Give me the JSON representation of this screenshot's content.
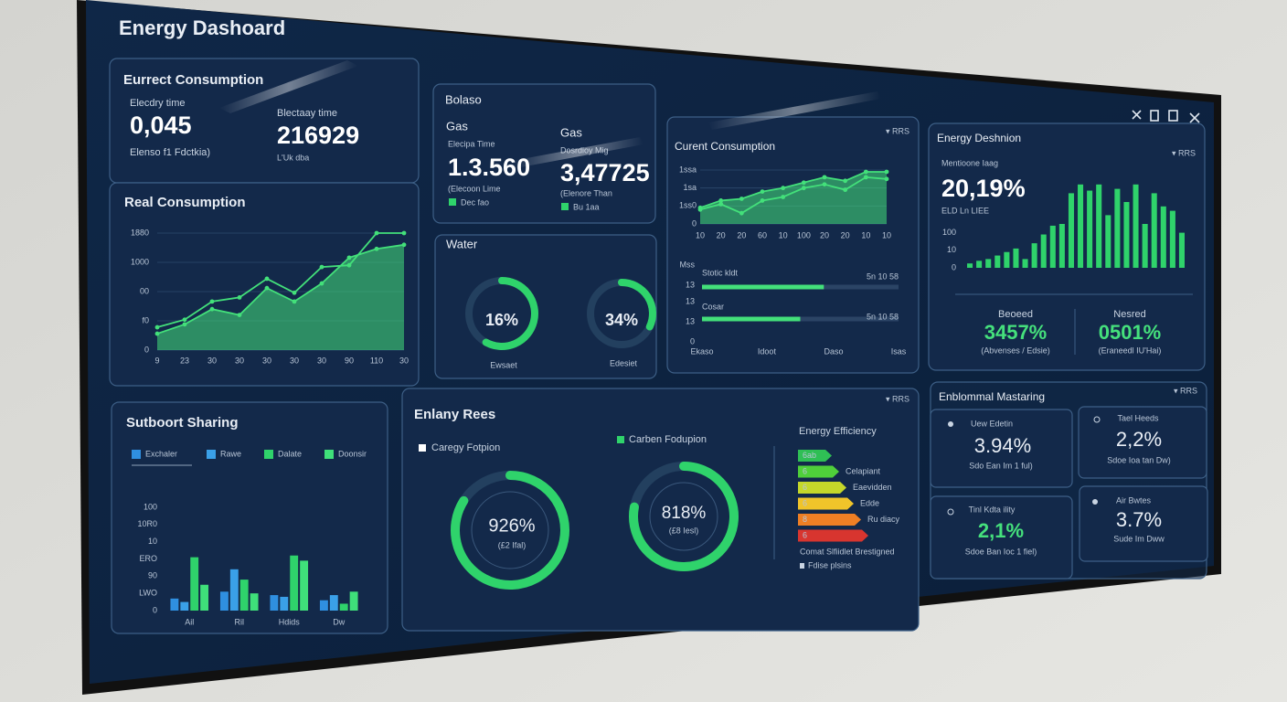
{
  "header": {
    "title": "Energy Dashoard"
  },
  "panels": {
    "current": {
      "title": "Eurrect Consumption",
      "items": [
        {
          "label": "Elecdry time",
          "value": "0,045",
          "sub": "Elenso f1 Fdctkia)"
        },
        {
          "label": "Blectaay time",
          "value": "216929",
          "sub": "L'Uk dba"
        }
      ]
    },
    "gas": {
      "title": "Bolaso",
      "items": [
        {
          "name": "Gas",
          "label": "Elecipa Time",
          "value": "1.3.560",
          "sub": "(Elecoon Lime",
          "legend": "Dec fao"
        },
        {
          "name": "Gas",
          "label": "Dosrdioy Mig",
          "value": "3,47725",
          "sub": "(Elenore Than",
          "legend": "Bu 1aa"
        }
      ]
    },
    "water": {
      "title": "Water",
      "gauges": [
        {
          "value": "16%",
          "label": "Ewsaet"
        },
        {
          "value": "34%",
          "label": "Edesiet"
        }
      ]
    },
    "consumption": {
      "menu": "▾ RRS"
    },
    "distribution": {
      "menu": "▾ RRS",
      "label": "Mentioone Iaag",
      "value": "20,19%",
      "sub": "ELD Ln LIEE",
      "stats": [
        {
          "label": "Beoeed",
          "value": "3457%",
          "sub": "(Abvenses / Edsie)"
        },
        {
          "label": "Nesred",
          "value": "0501%",
          "sub": "(Eraneedl IU'Hai)"
        }
      ]
    },
    "rees": {
      "title": "Enlany Rees",
      "menu": "▾ RRS",
      "donuts": [
        {
          "title": "Caregy Fotpion",
          "value": "926%",
          "sub": "(£2 Ifal)"
        },
        {
          "title": "Carben Fodupion",
          "value": "818%",
          "sub": "(£8 Iesl)"
        }
      ]
    },
    "efficiency": {
      "title": "Energy Efficiency",
      "ratings": [
        {
          "label": "6ab",
          "text": "",
          "color": "#2fbf55"
        },
        {
          "label": "6",
          "text": "Celapiant",
          "color": "#4fcf3a"
        },
        {
          "label": "6",
          "text": "Eaevidden",
          "color": "#c5d72a"
        },
        {
          "label": "6",
          "text": "Edde",
          "color": "#f0c42a"
        },
        {
          "label": "8",
          "text": "Ru diacy",
          "color": "#ef7f24"
        },
        {
          "label": "6",
          "text": "",
          "color": "#d8352f"
        }
      ],
      "footer": [
        "Comat Slfiidlet Brestigned",
        "Fdise plsins"
      ]
    },
    "monitoring": {
      "title": "Enblommal Mastaring",
      "menu": "▾ RRS",
      "cards": [
        {
          "label": "Uew Edetin",
          "value": "3.94%",
          "sub": "Sdo Ean Im 1 ful)"
        },
        {
          "label": "Tael Heeds",
          "value": "2,2%",
          "sub": "Sdoe Ioa tan Dw)"
        },
        {
          "label": "Tinl Kdta ility",
          "value": "2,1%",
          "sub": "Sdoe Ban Ioc 1 fiel)"
        },
        {
          "label": "Air Bwtes",
          "value": "3.7%",
          "sub": "Sude Im Dww"
        }
      ]
    }
  },
  "chart_data": [
    {
      "type": "line",
      "title": "Real Consumption",
      "categories": [
        "9",
        "23",
        "30",
        "30",
        "30",
        "30",
        "30",
        "90",
        "110",
        "30"
      ],
      "series": [
        {
          "color": "#43e07a",
          "values": [
            390,
            520,
            830,
            900,
            1220,
            980,
            1420,
            1450,
            2000,
            2000
          ]
        },
        {
          "color": "#43e07a",
          "fill": true,
          "values": [
            280,
            440,
            700,
            600,
            1060,
            830,
            1140,
            1580,
            1730,
            1800
          ]
        }
      ],
      "ylim": [
        0,
        2000
      ],
      "yticks": [
        0,
        {
          "value": 500,
          "label": "f0"
        },
        {
          "value": 1000,
          "label": "00"
        },
        {
          "value": 1500,
          "label": "1000"
        },
        {
          "value": 2000,
          "label": "1880"
        }
      ],
      "grid": true
    },
    {
      "type": "line",
      "title": "Curent Consumption",
      "categories": [
        "10",
        "20",
        "20",
        "60",
        "10",
        "100",
        "20",
        "20",
        "10",
        "10"
      ],
      "series": [
        {
          "color": "#43e07a",
          "fill": true,
          "values": [
            0.9,
            1.3,
            1.4,
            1.8,
            2.0,
            2.3,
            2.6,
            2.4,
            2.9,
            2.9
          ]
        },
        {
          "color": "#43e07a",
          "values": [
            0.8,
            1.1,
            0.6,
            1.3,
            1.5,
            2.0,
            2.2,
            1.9,
            2.6,
            2.5
          ]
        }
      ],
      "ylim": [
        0,
        3
      ],
      "yticks": [
        0,
        {
          "value": 1,
          "label": "1ss0"
        },
        {
          "value": 2,
          "label": "1sa"
        },
        {
          "value": 3,
          "label": "1ssa"
        }
      ],
      "grid": true
    },
    {
      "type": "hbar",
      "categories": [
        "Stotic kldt",
        "Cosar"
      ],
      "values": [
        62,
        50
      ],
      "annotations": [
        "5n 10 58",
        "5n 10 58"
      ],
      "color": "#43e07a",
      "ylabels": [
        "Mss",
        "13",
        "13",
        "13",
        "0"
      ],
      "xlim": [
        0,
        100
      ],
      "xticks": [
        {
          "value": 0,
          "label": "Ekaso"
        },
        {
          "value": 33,
          "label": "Idoot"
        },
        {
          "value": 67,
          "label": "Daso"
        },
        {
          "value": 100,
          "label": "Isas"
        }
      ]
    },
    {
      "type": "bar",
      "title": "Energy Deshnion",
      "values": [
        5,
        8,
        10,
        14,
        18,
        22,
        10,
        28,
        38,
        48,
        50,
        85,
        95,
        88,
        95,
        60,
        90,
        75,
        95,
        50,
        85,
        70,
        65,
        40
      ],
      "color": "#2fd36b",
      "ylim": [
        0,
        100
      ],
      "yticks": [
        0,
        {
          "value": 20,
          "label": "10"
        },
        {
          "value": 40,
          "label": "100"
        }
      ]
    },
    {
      "type": "groupbar",
      "title": "Sutboort Sharing",
      "categories": [
        "Ail",
        "Ril",
        "Hdids",
        "Dw"
      ],
      "series": [
        {
          "name": "Exchaler",
          "color": "#2f8fe0",
          "values": [
            14,
            22,
            18,
            12
          ]
        },
        {
          "name": "Rawe",
          "color": "#3aa0e8",
          "values": [
            10,
            48,
            16,
            18
          ]
        },
        {
          "name": "Dalate",
          "color": "#2fd36b",
          "values": [
            62,
            36,
            64,
            8
          ]
        },
        {
          "name": "Doonsir",
          "color": "#3fe07a",
          "values": [
            30,
            20,
            58,
            22
          ]
        }
      ],
      "ylim": [
        0,
        120
      ],
      "yticks": [
        0,
        {
          "value": 20,
          "label": "LWO"
        },
        {
          "value": 40,
          "label": "90"
        },
        {
          "value": 60,
          "label": "ERO"
        },
        {
          "value": 80,
          "label": "10"
        },
        {
          "value": 100,
          "label": "10R0"
        },
        {
          "value": 120,
          "label": "100"
        }
      ]
    },
    {
      "type": "gauge",
      "color": "#2fd36b",
      "values": [
        58,
        32,
        84,
        78
      ]
    }
  ]
}
